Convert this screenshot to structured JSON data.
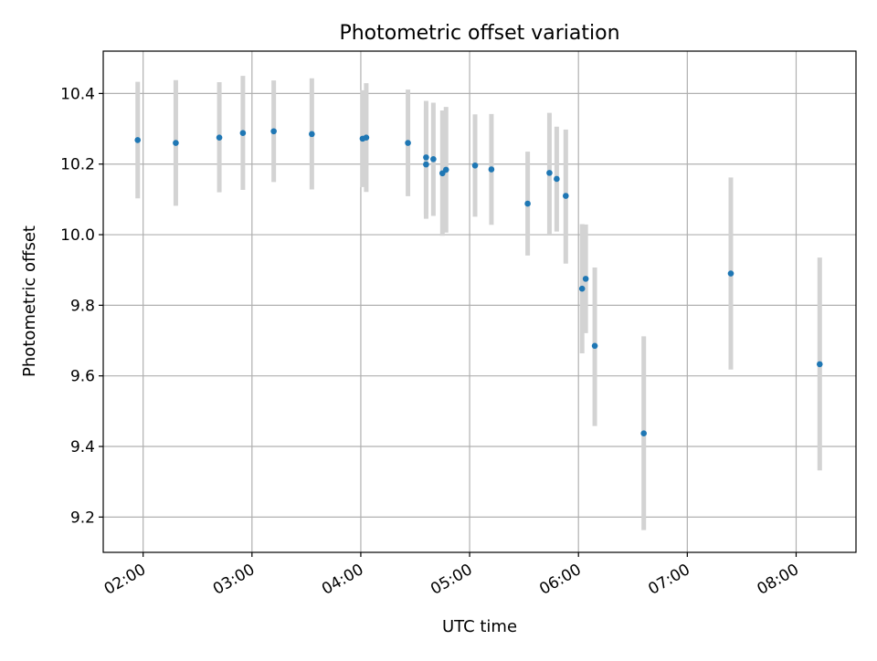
{
  "chart_data": {
    "type": "scatter",
    "title": "Photometric offset variation",
    "xlabel": "UTC time",
    "ylabel": "Photometric offset",
    "x_tick_labels": [
      "02:00",
      "03:00",
      "04:00",
      "05:00",
      "06:00",
      "07:00",
      "08:00"
    ],
    "y_tick_labels": [
      "9.2",
      "9.4",
      "9.6",
      "9.8",
      "10.0",
      "10.2",
      "10.4"
    ],
    "x_ticks": [
      "02:00",
      "03:00",
      "04:00",
      "05:00",
      "06:00",
      "07:00",
      "08:00"
    ],
    "y_ticks": [
      9.2,
      9.4,
      9.6,
      9.8,
      10.0,
      10.2,
      10.4
    ],
    "xlim": [
      "01:38",
      "08:33"
    ],
    "ylim": [
      9.1,
      10.52
    ],
    "grid": true,
    "legend": "none",
    "colors": {
      "point": "#1f77b4",
      "errorbar": "#d3d3d3",
      "grid": "#b0b0b0"
    },
    "points": [
      {
        "x": "01:57",
        "y": 10.268,
        "ylo": 10.103,
        "yhi": 10.433
      },
      {
        "x": "02:18",
        "y": 10.26,
        "ylo": 10.082,
        "yhi": 10.438
      },
      {
        "x": "02:42",
        "y": 10.275,
        "ylo": 10.12,
        "yhi": 10.432
      },
      {
        "x": "02:55",
        "y": 10.288,
        "ylo": 10.127,
        "yhi": 10.45
      },
      {
        "x": "03:12",
        "y": 10.293,
        "ylo": 10.149,
        "yhi": 10.437
      },
      {
        "x": "03:33",
        "y": 10.285,
        "ylo": 10.128,
        "yhi": 10.443
      },
      {
        "x": "04:01",
        "y": 10.272,
        "ylo": 10.135,
        "yhi": 10.409
      },
      {
        "x": "04:03",
        "y": 10.275,
        "ylo": 10.121,
        "yhi": 10.429
      },
      {
        "x": "04:26",
        "y": 10.26,
        "ylo": 10.109,
        "yhi": 10.411
      },
      {
        "x": "04:36",
        "y": 10.219,
        "ylo": 10.059,
        "yhi": 10.379
      },
      {
        "x": "04:36",
        "y": 10.199,
        "ylo": 10.045,
        "yhi": 10.354
      },
      {
        "x": "04:40",
        "y": 10.214,
        "ylo": 10.053,
        "yhi": 10.374
      },
      {
        "x": "04:45",
        "y": 10.174,
        "ylo": 9.997,
        "yhi": 10.352
      },
      {
        "x": "04:47",
        "y": 10.184,
        "ylo": 10.006,
        "yhi": 10.362
      },
      {
        "x": "05:03",
        "y": 10.196,
        "ylo": 10.051,
        "yhi": 10.341
      },
      {
        "x": "05:12",
        "y": 10.185,
        "ylo": 10.028,
        "yhi": 10.342
      },
      {
        "x": "05:32",
        "y": 10.088,
        "ylo": 9.941,
        "yhi": 10.235
      },
      {
        "x": "05:44",
        "y": 10.175,
        "ylo": 10.0,
        "yhi": 10.345
      },
      {
        "x": "05:48",
        "y": 10.158,
        "ylo": 10.009,
        "yhi": 10.306
      },
      {
        "x": "05:53",
        "y": 10.11,
        "ylo": 9.918,
        "yhi": 10.298
      },
      {
        "x": "06:02",
        "y": 9.847,
        "ylo": 9.664,
        "yhi": 10.03
      },
      {
        "x": "06:04",
        "y": 9.875,
        "ylo": 9.721,
        "yhi": 10.029
      },
      {
        "x": "06:09",
        "y": 9.685,
        "ylo": 9.458,
        "yhi": 9.907
      },
      {
        "x": "06:36",
        "y": 9.437,
        "ylo": 9.163,
        "yhi": 9.712
      },
      {
        "x": "07:24",
        "y": 9.89,
        "ylo": 9.618,
        "yhi": 10.162
      },
      {
        "x": "08:13",
        "y": 9.633,
        "ylo": 9.332,
        "yhi": 9.935
      }
    ]
  }
}
